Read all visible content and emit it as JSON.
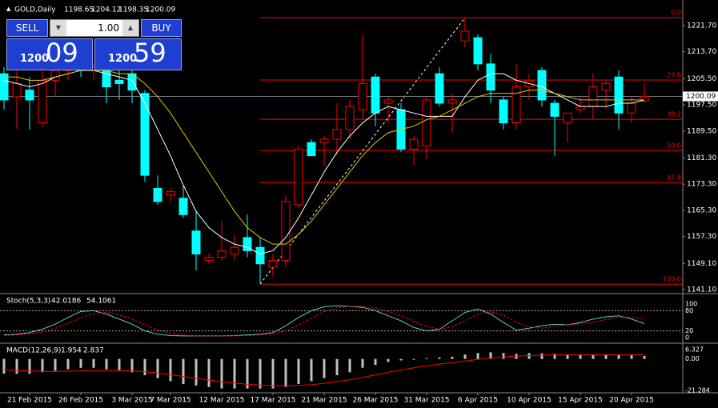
{
  "chart_data": {
    "type": "candlestick",
    "title": "GOLD,Daily",
    "categories": [
      null,
      null,
      "21 Feb 2015",
      null,
      null,
      null,
      "26 Feb 2015",
      null,
      null,
      null,
      "3 Mar 2015",
      null,
      null,
      "7 Mar 2015",
      null,
      null,
      null,
      "12 Mar 2015",
      null,
      null,
      null,
      "17 Mar 2015",
      null,
      null,
      null,
      "21 Mar 2015",
      null,
      null,
      null,
      "26 Mar 2015",
      null,
      null,
      null,
      "31 Mar 2015",
      null,
      null,
      null,
      "6 Apr 2015",
      null,
      null,
      null,
      "10 Apr 2015",
      null,
      null,
      null,
      "15 Apr 2015",
      null,
      null,
      null,
      "20 Apr 2015",
      null
    ],
    "open": [
      1207,
      1200,
      1202,
      1192,
      1205,
      1208,
      1209,
      1208,
      1208,
      1205,
      1207,
      1201,
      1172,
      1170,
      1169,
      1159,
      1150,
      1151,
      1152,
      1157,
      1154,
      1148,
      1150,
      1167,
      1186,
      1186,
      1187,
      1190,
      1196,
      1206,
      1198,
      1196,
      1184,
      1185,
      1207,
      1198,
      1217,
      1218,
      1210,
      1199,
      1192,
      1203,
      1208,
      1198,
      1192,
      1196,
      1197,
      1202,
      1206,
      1195,
      1198.65
    ],
    "high": [
      1209,
      1210,
      1206,
      1208,
      1211,
      1210,
      1211,
      1210,
      1210,
      1208,
      1208,
      1202,
      1176,
      1172,
      1173,
      1165,
      1152,
      1162,
      1158,
      1164,
      1157,
      1152,
      1170,
      1185,
      1187,
      1188,
      1198,
      1199,
      1219,
      1207,
      1200,
      1198,
      1188,
      1200,
      1209,
      1201,
      1224.1,
      1219,
      1213,
      1200,
      1210,
      1207,
      1209,
      1199,
      1195,
      1200,
      1207,
      1205,
      1208,
      1200,
      1204.12
    ],
    "low": [
      1196,
      1190,
      1190,
      1191,
      1200,
      1205,
      1206,
      1205,
      1198,
      1199,
      1198,
      1174,
      1167,
      1168,
      1163,
      1147,
      1149,
      1150,
      1150,
      1151,
      1142.8,
      1145,
      1148,
      1166,
      1182,
      1179,
      1182,
      1187,
      1193,
      1191,
      1192,
      1183,
      1179,
      1181,
      1197,
      1189,
      1215,
      1208,
      1198,
      1190,
      1190,
      1199,
      1197,
      1182,
      1186,
      1195,
      1193,
      1196,
      1190,
      1192,
      1198.35
    ],
    "close": [
      1199,
      1204,
      1199,
      1205,
      1208,
      1209,
      1208,
      1209,
      1203,
      1204,
      1202,
      1176,
      1168,
      1171,
      1164,
      1152,
      1151,
      1153,
      1154,
      1153,
      1149,
      1150,
      1168,
      1184,
      1182,
      1187,
      1190,
      1197,
      1204,
      1195,
      1199,
      1184,
      1187,
      1199,
      1198,
      1199,
      1220,
      1210,
      1202,
      1192,
      1203,
      1205,
      1199,
      1194,
      1195,
      1197,
      1203,
      1204,
      1195,
      1198,
      1200.09
    ],
    "bull_color": "#ff0000",
    "bear_color": "#00ffff",
    "series": [
      {
        "name": "MA fast",
        "color": "#ffffff",
        "values": [
          1205,
          1204,
          1203,
          1204,
          1206,
          1207,
          1208,
          1208,
          1207,
          1206,
          1205,
          1198,
          1190,
          1182,
          1173,
          1165,
          1160,
          1157,
          1155,
          1154,
          1152,
          1153,
          1157,
          1163,
          1170,
          1177,
          1183,
          1188,
          1192,
          1195,
          1197,
          1196,
          1195,
          1194,
          1194,
          1194,
          1200,
          1205,
          1207,
          1207,
          1205,
          1204,
          1203,
          1201,
          1199,
          1197,
          1197,
          1197,
          1198,
          1198,
          1199
        ]
      },
      {
        "name": "MA slow",
        "color": "#e8c600",
        "values": [
          1206,
          1206,
          1205,
          1205,
          1206,
          1207,
          1208,
          1208,
          1208,
          1207,
          1207,
          1204,
          1200,
          1195,
          1189,
          1183,
          1177,
          1171,
          1165,
          1160,
          1157,
          1155,
          1155,
          1158,
          1162,
          1167,
          1172,
          1177,
          1182,
          1186,
          1189,
          1190,
          1191,
          1193,
          1194,
          1196,
          1198,
          1200,
          1201,
          1201,
          1201,
          1202,
          1202,
          1201,
          1200,
          1199,
          1199,
          1199,
          1199,
          1199,
          1199
        ]
      }
    ],
    "ylim": [
      1139.9,
      1229.5
    ],
    "yticks": [
      {
        "value": 1221.7,
        "label": "1221.70"
      },
      {
        "value": 1213.7,
        "label": "1213.70"
      },
      {
        "value": 1205.5,
        "label": "1205.50"
      },
      {
        "value": 1197.5,
        "label": "1197.50"
      },
      {
        "value": 1189.5,
        "label": "1189.50"
      },
      {
        "value": 1181.3,
        "label": "1181.30"
      },
      {
        "value": 1173.3,
        "label": "1173.30"
      },
      {
        "value": 1165.3,
        "label": "1165.30"
      },
      {
        "value": 1157.3,
        "label": "1157.30"
      },
      {
        "value": 1149.1,
        "label": "1149.10"
      },
      {
        "value": 1141.1,
        "label": "1141.10"
      }
    ],
    "fib": {
      "color": "#ff0000",
      "start_index": 20,
      "levels": [
        {
          "value": 0,
          "label": "0.0"
        },
        {
          "value": 23.6,
          "label": "23.6"
        },
        {
          "value": 38.2,
          "label": "38.2"
        },
        {
          "value": 50,
          "label": "50.0"
        },
        {
          "value": 61.8,
          "label": "61.8"
        },
        {
          "value": 100,
          "label": "100.0"
        }
      ],
      "prices": [
        1224.1,
        1205.1,
        1193.1,
        1183.6,
        1173.8,
        1142.8
      ]
    },
    "trendline": {
      "x": [
        20,
        36
      ],
      "y": [
        1142.8,
        1224.1
      ]
    },
    "stoch": {
      "title": "Stoch(5,3,3)",
      "ylim": [
        0,
        100
      ],
      "yticks": [
        100,
        80,
        20,
        0
      ],
      "levels": [
        80,
        20
      ],
      "series": [
        {
          "name": "main",
          "color": "#5fc8c8",
          "values": [
            8,
            10,
            15,
            25,
            40,
            60,
            78,
            80,
            70,
            55,
            40,
            20,
            10,
            6,
            5,
            5,
            5,
            5,
            6,
            8,
            10,
            15,
            35,
            60,
            80,
            92,
            95,
            93,
            90,
            80,
            65,
            50,
            30,
            20,
            25,
            50,
            75,
            85,
            70,
            45,
            22,
            28,
            35,
            40,
            38,
            45,
            55,
            62,
            65,
            55,
            42.0186
          ]
        },
        {
          "name": "signal",
          "color": "#ff0000",
          "values": [
            6,
            8,
            11,
            17,
            27,
            42,
            59,
            72,
            76,
            68,
            55,
            38,
            23,
            12,
            7,
            5,
            5,
            5,
            5,
            6,
            8,
            11,
            20,
            37,
            58,
            77,
            89,
            93,
            93,
            88,
            78,
            65,
            48,
            33,
            25,
            32,
            50,
            70,
            77,
            67,
            46,
            32,
            28,
            34,
            38,
            41,
            46,
            54,
            61,
            61,
            54.1061
          ]
        }
      ]
    },
    "macd": {
      "title": "MACD(12,26,9)",
      "ylim": [
        -21.284,
        6.327
      ],
      "yticks": [
        6.327,
        {
          "value": 0,
          "label": "0.00"
        },
        -21.284
      ],
      "histogram": {
        "color": "#c0c0c0",
        "values": [
          -10,
          -10,
          -10,
          -9,
          -8,
          -7,
          -6,
          -6,
          -7,
          -8,
          -9,
          -11,
          -13,
          -15,
          -17,
          -18,
          -19,
          -20,
          -20,
          -20,
          -20,
          -20,
          -19,
          -17,
          -15,
          -13,
          -11,
          -9,
          -6,
          -4,
          -2,
          -1,
          -0.5,
          0.5,
          1,
          1.5,
          3,
          4,
          4.5,
          4,
          3.5,
          4,
          3.8,
          3.5,
          3,
          2.8,
          2.8,
          2.8,
          3,
          2.5,
          1.954
        ]
      },
      "signal": {
        "color": "#ff0000",
        "values": [
          -7,
          -8,
          -8,
          -8.5,
          -8.5,
          -8.3,
          -8,
          -7.8,
          -7.7,
          -7.8,
          -8,
          -8.6,
          -9.5,
          -10.6,
          -11.9,
          -13.1,
          -14.3,
          -15.4,
          -16.3,
          -17.1,
          -17.6,
          -18,
          -18.2,
          -18,
          -17.4,
          -16.5,
          -15.4,
          -14.1,
          -12.5,
          -10.8,
          -9,
          -7.4,
          -6,
          -4.7,
          -3.5,
          -2.5,
          -1.4,
          -0.3,
          0.7,
          1.4,
          1.9,
          2.3,
          2.6,
          2.8,
          2.8,
          2.8,
          2.8,
          2.8,
          2.85,
          2.8,
          2.837
        ]
      }
    },
    "trade_panel": {
      "sell": "SELL",
      "buy": "BUY",
      "lot": "1.00",
      "bid_big": "1200",
      "bid_small": "09",
      "ask_big": "1200",
      "ask_small": "59"
    }
  }
}
